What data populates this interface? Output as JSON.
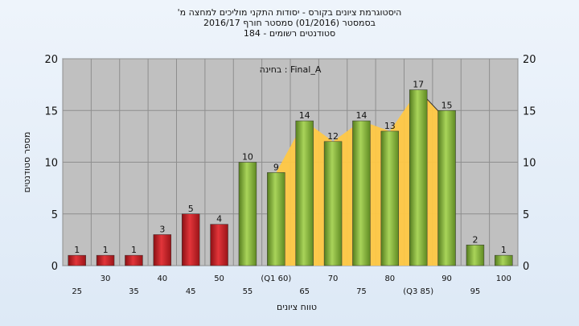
{
  "title_lines": [
    "'היסטוגרמת ציונים בקורס - יסודות התקני מוליכים למחצה מ",
    "בסמסטר  (01/2016)  סמסטר חורף  2016/17",
    "סטודנטים רשומים - 184"
  ],
  "chart_data": {
    "type": "bar",
    "xlabel": "טווח ציונים",
    "ylabel": "מספר סטודנטים",
    "annotation": "בחינה : Final_A",
    "ylim": [
      0,
      20
    ],
    "yticks": [
      0,
      5,
      10,
      15,
      20
    ],
    "grid": true,
    "categories": [
      "25",
      "30",
      "35",
      "40",
      "45",
      "50",
      "55",
      "(Q1 60)",
      "65",
      "70",
      "75",
      "80",
      "(Q3 85)",
      "90",
      "95",
      "100"
    ],
    "values": [
      1,
      1,
      1,
      3,
      5,
      4,
      10,
      9,
      14,
      12,
      14,
      13,
      17,
      15,
      2,
      1
    ],
    "bar_colors": [
      "red",
      "red",
      "red",
      "red",
      "red",
      "red",
      "green",
      "green",
      "green",
      "green",
      "green",
      "green",
      "green",
      "green",
      "green",
      "green"
    ],
    "iqr_band": {
      "from": "(Q1 60)",
      "to": "(Q3 85)"
    },
    "colors": {
      "red_bar": "#d9262c",
      "green_bar": "#8cbf3c",
      "iqr_band": "#ffc845",
      "plot_bg": "#c0c0c0",
      "grid": "#8e8e8e"
    }
  }
}
